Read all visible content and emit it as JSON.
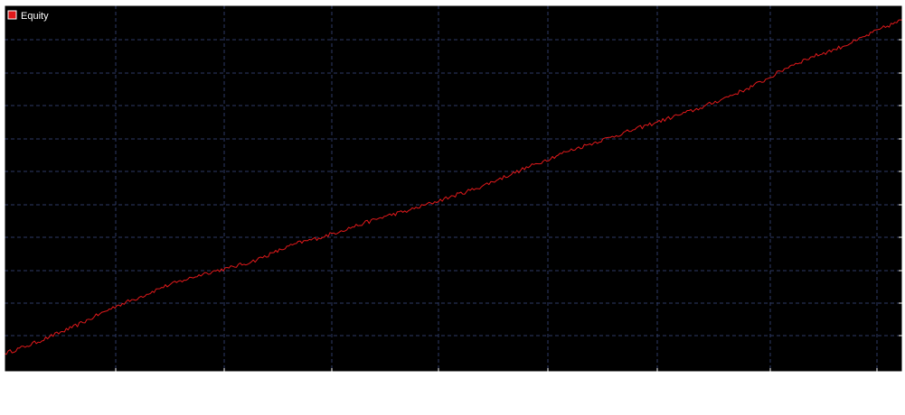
{
  "colors": {
    "background": "#000000",
    "frame": "#ffffff",
    "grid": "#2e3a66",
    "series": "#e0191b",
    "legend_text": "#ffffff"
  },
  "legend": {
    "label": "Equity",
    "placement": "top-left"
  },
  "chart_data": {
    "type": "line",
    "title": "",
    "xlabel": "",
    "ylabel": "",
    "grid": true,
    "legend_placement": "top-left",
    "xlim": [
      0,
      1000
    ],
    "ylim": [
      0,
      100
    ],
    "series": [
      {
        "name": "Equity",
        "x": [
          0,
          25,
          50,
          75,
          100,
          125,
          150,
          175,
          200,
          225,
          250,
          275,
          300,
          325,
          350,
          375,
          400,
          425,
          450,
          475,
          500,
          525,
          550,
          575,
          600,
          625,
          650,
          675,
          700,
          725,
          750,
          775,
          800,
          825,
          850,
          875,
          900,
          925,
          950,
          975,
          1000
        ],
        "values": [
          5.0,
          7.0,
          9.5,
          12.0,
          15.0,
          18.0,
          20.3,
          23.0,
          25.0,
          27.0,
          28.3,
          30.0,
          32.5,
          35.0,
          36.5,
          38.5,
          40.5,
          42.5,
          44.0,
          46.0,
          48.0,
          50.0,
          52.5,
          55.0,
          57.5,
          60.0,
          62.0,
          64.0,
          66.0,
          68.0,
          70.0,
          72.0,
          74.5,
          77.0,
          80.0,
          83.5,
          86.0,
          88.0,
          90.5,
          93.5,
          96.0
        ]
      }
    ]
  }
}
